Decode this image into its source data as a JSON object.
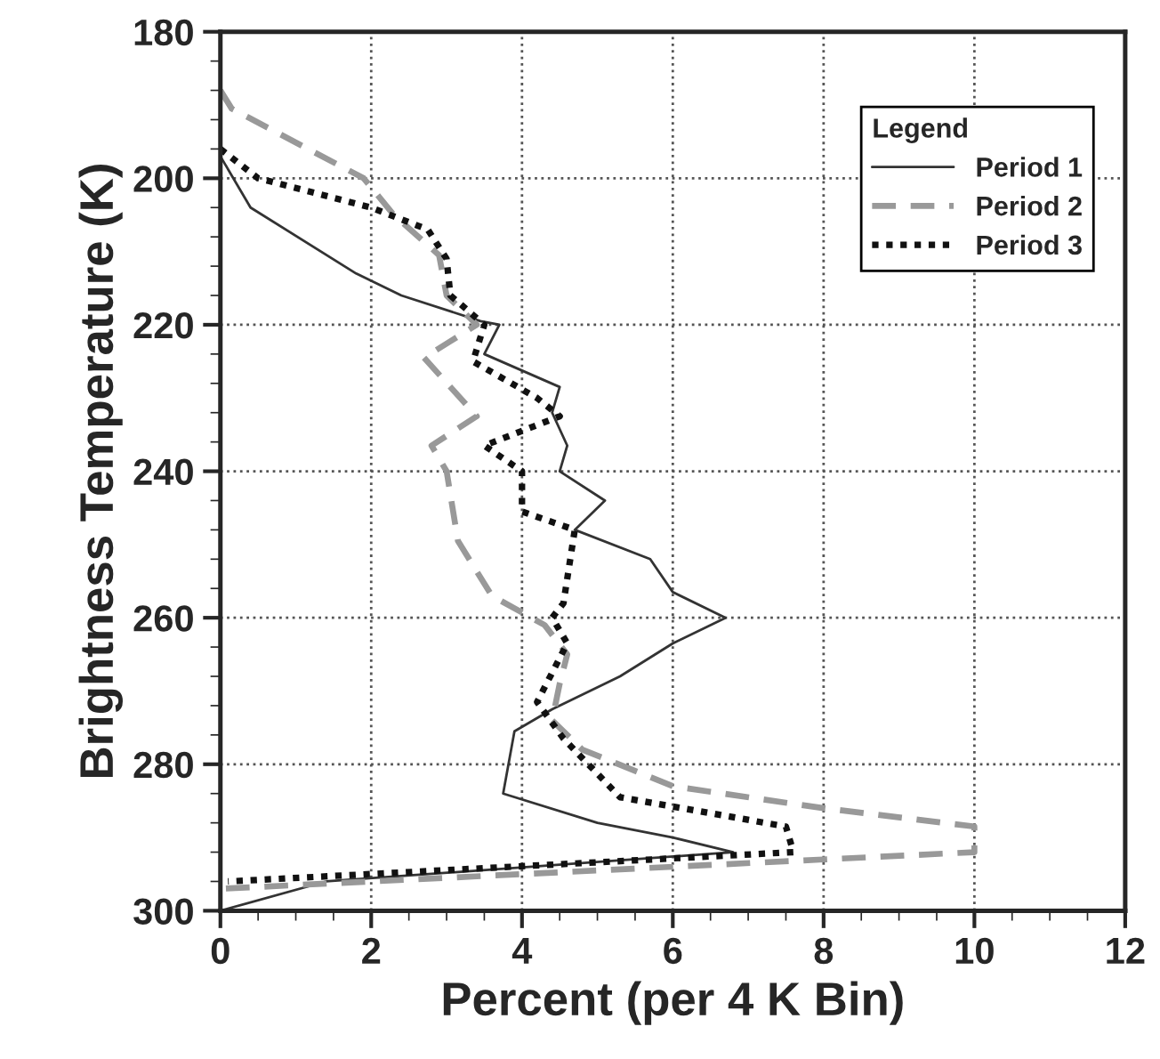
{
  "chart_data": {
    "type": "line",
    "xlabel": "Percent (per 4 K Bin)",
    "ylabel": "Brightness Temperature (K)",
    "legend_title": "Legend",
    "xlim": [
      0,
      12
    ],
    "xticks": [
      0,
      2,
      4,
      6,
      8,
      10,
      12
    ],
    "ylim": [
      300,
      180
    ],
    "yticks": [
      180,
      200,
      220,
      240,
      260,
      280,
      300
    ],
    "grid": true,
    "legend": "top right",
    "series": [
      {
        "name": "Period 1",
        "color": "#333333",
        "line_style": "solid",
        "x": [
          0,
          0.4,
          1.8,
          2.4,
          3.45,
          3.7,
          3.5,
          4.5,
          4.4,
          4.6,
          4.5,
          5.1,
          4.7,
          5.7,
          6.0,
          6.7,
          6.0,
          5.3,
          4.4,
          3.9,
          3.75,
          5.0,
          6.0,
          6.8,
          1.4,
          0
        ],
        "values": [
          197,
          204,
          213,
          216,
          219.5,
          220,
          224,
          228.5,
          232,
          236.5,
          240,
          244,
          248,
          252,
          256.5,
          260,
          263.5,
          268,
          272.5,
          275.5,
          284,
          288,
          290,
          292,
          296,
          300
        ]
      },
      {
        "name": "Period 2",
        "color": "#999999",
        "line_style": "dashed",
        "x": [
          0,
          0.15,
          1.9,
          2.3,
          2.9,
          3.0,
          3.4,
          2.7,
          3.4,
          2.8,
          3.0,
          3.15,
          3.6,
          4.3,
          4.6,
          4.5,
          4.4,
          4.8,
          6.0,
          8.0,
          10.0,
          10.0,
          8.0,
          0
        ],
        "values": [
          188,
          190.5,
          200,
          205,
          210.5,
          216,
          220,
          224.5,
          232.5,
          236.5,
          240,
          249.5,
          257,
          261,
          265,
          269,
          274,
          278,
          283,
          286,
          288.5,
          292,
          293,
          297
        ]
      },
      {
        "name": "Period 3",
        "color": "#111111",
        "line_style": "dotted",
        "x": [
          0,
          0.5,
          2.0,
          2.75,
          3.0,
          3.05,
          3.5,
          3.35,
          4.2,
          4.5,
          3.5,
          4.0,
          4.0,
          4.7,
          4.55,
          4.4,
          4.6,
          4.2,
          4.55,
          5.3,
          7.5,
          7.6,
          0.1
        ],
        "values": [
          196,
          200,
          204,
          207,
          211,
          216,
          220,
          225,
          230,
          232.5,
          236.5,
          240,
          245.5,
          248,
          258,
          260,
          263.5,
          271.5,
          276.5,
          284.5,
          288.5,
          292,
          296
        ]
      }
    ]
  }
}
